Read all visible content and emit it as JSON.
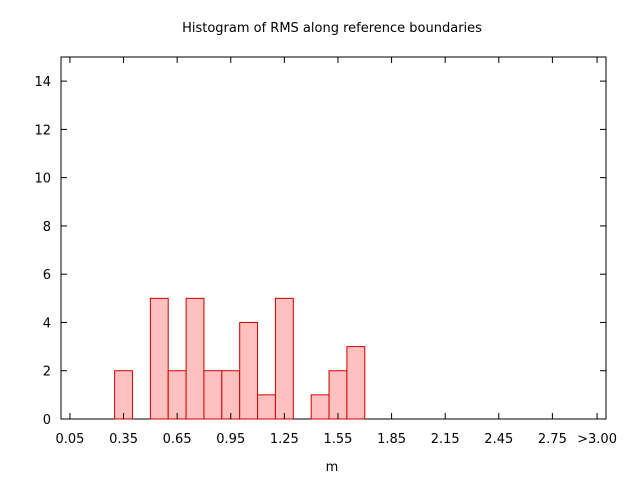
{
  "chart_data": {
    "type": "bar",
    "title": "Histogram of RMS along reference boundaries",
    "xlabel": "m",
    "ylabel": "",
    "xlim": [
      0.0,
      3.05
    ],
    "ylim": [
      0,
      15
    ],
    "bin_width": 0.1,
    "x_ticks": [
      {
        "value": 0.05,
        "label": "0.05"
      },
      {
        "value": 0.35,
        "label": "0.35"
      },
      {
        "value": 0.65,
        "label": "0.65"
      },
      {
        "value": 0.95,
        "label": "0.95"
      },
      {
        "value": 1.25,
        "label": "1.25"
      },
      {
        "value": 1.55,
        "label": "1.55"
      },
      {
        "value": 1.85,
        "label": "1.85"
      },
      {
        "value": 2.15,
        "label": "2.15"
      },
      {
        "value": 2.45,
        "label": "2.45"
      },
      {
        "value": 2.75,
        "label": "2.75"
      },
      {
        "value": 3.0,
        "label": ">3.00"
      }
    ],
    "y_ticks": [
      0,
      2,
      4,
      6,
      8,
      10,
      12,
      14
    ],
    "bins": [
      {
        "x": 0.35,
        "count": 2
      },
      {
        "x": 0.55,
        "count": 5
      },
      {
        "x": 0.65,
        "count": 2
      },
      {
        "x": 0.75,
        "count": 5
      },
      {
        "x": 0.85,
        "count": 2
      },
      {
        "x": 0.95,
        "count": 2
      },
      {
        "x": 1.05,
        "count": 4
      },
      {
        "x": 1.15,
        "count": 1
      },
      {
        "x": 1.25,
        "count": 5
      },
      {
        "x": 1.45,
        "count": 1
      },
      {
        "x": 1.55,
        "count": 2
      },
      {
        "x": 1.65,
        "count": 3
      }
    ],
    "colors": {
      "fill": "#ffc0c0",
      "stroke": "#cc0000"
    },
    "grid": false,
    "legend": "none"
  }
}
